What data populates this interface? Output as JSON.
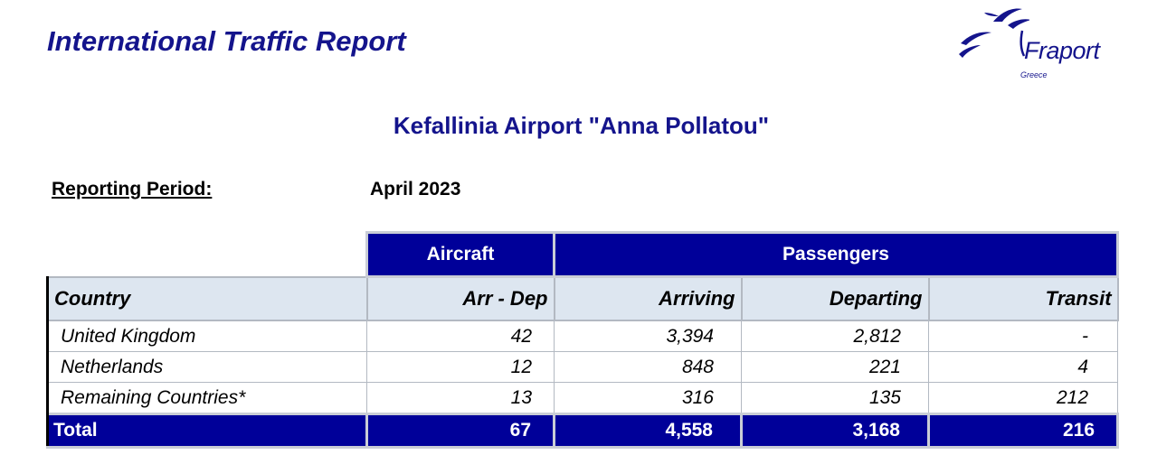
{
  "header": {
    "report_title": "International Traffic Report",
    "logo_word": "Fraport",
    "logo_sub": "Greece",
    "brand_color": "#14148c"
  },
  "airport_title": "Kefallinia Airport \"Anna Pollatou\"",
  "reporting_period": {
    "label": "Reporting Period:",
    "value": "April 2023"
  },
  "table": {
    "group_headers": {
      "aircraft": "Aircraft",
      "passengers": "Passengers"
    },
    "columns": [
      "Country",
      "Arr - Dep",
      "Arriving",
      "Departing",
      "Transit"
    ],
    "rows": [
      [
        "United Kingdom",
        "42",
        "3,394",
        "2,812",
        "-"
      ],
      [
        "Netherlands",
        "12",
        "848",
        "221",
        "4"
      ],
      [
        "Remaining Countries*",
        "13",
        "316",
        "135",
        "212"
      ]
    ],
    "total": [
      "Total",
      "67",
      "4,558",
      "3,168",
      "216"
    ],
    "header_fill": "#000099",
    "subheader_fill": "#dde6f0"
  }
}
